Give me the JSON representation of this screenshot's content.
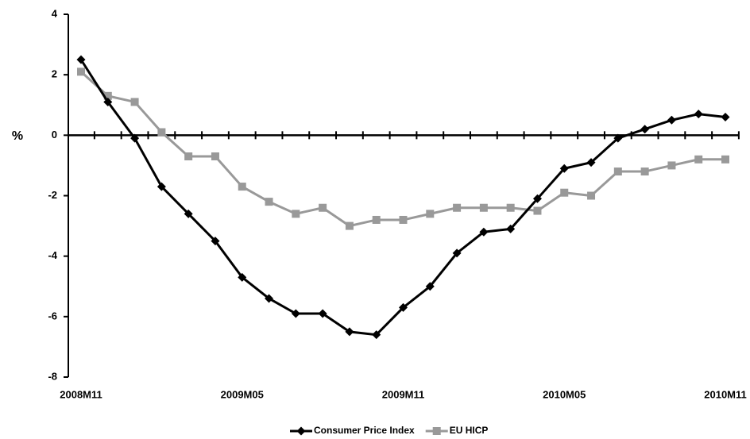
{
  "chart_data": {
    "type": "line",
    "y_label": "%",
    "categories": [
      "2008M11",
      null,
      null,
      null,
      null,
      null,
      "2009M05",
      null,
      null,
      null,
      null,
      null,
      "2009M11",
      null,
      null,
      null,
      null,
      null,
      "2010M05",
      null,
      null,
      null,
      null,
      null,
      "2010M11"
    ],
    "series": [
      {
        "name": "Consumer Price Index",
        "color": "#000000",
        "marker": "diamond",
        "values": [
          2.5,
          1.1,
          -0.1,
          -1.7,
          -2.6,
          -3.5,
          -4.7,
          -5.4,
          -5.9,
          -5.9,
          -6.5,
          -6.6,
          -5.7,
          -5.0,
          -3.9,
          -3.2,
          -3.1,
          -2.1,
          -1.1,
          -0.9,
          -0.1,
          0.2,
          0.5,
          0.7,
          0.6
        ]
      },
      {
        "name": "EU HICP",
        "color": "#999999",
        "marker": "square",
        "values": [
          2.1,
          1.3,
          1.1,
          0.1,
          -0.7,
          -0.7,
          -1.7,
          -2.2,
          -2.6,
          -2.4,
          -3.0,
          -2.8,
          -2.8,
          -2.6,
          -2.4,
          -2.4,
          -2.4,
          -2.5,
          -1.9,
          -2.0,
          -1.2,
          -1.2,
          -1.0,
          -0.8,
          -0.8
        ]
      }
    ],
    "ylim": [
      -8,
      4
    ],
    "yticks": [
      -8,
      -6,
      -4,
      -2,
      0,
      2,
      4
    ],
    "legend": "bottom"
  }
}
